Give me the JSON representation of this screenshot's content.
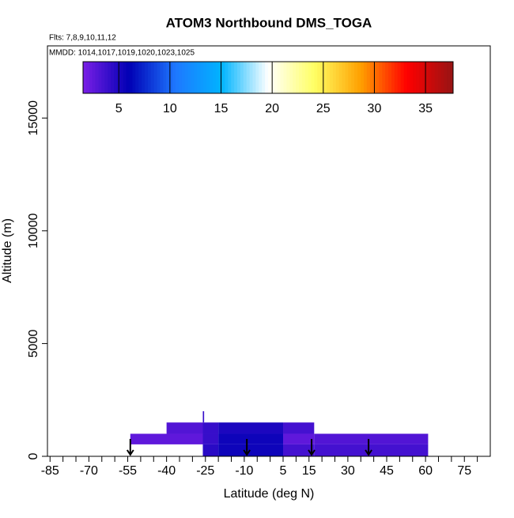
{
  "chart_data": {
    "type": "curtain",
    "title": "ATOM3 Northbound DMS_TOGA",
    "subtitle": "Flts: 7,8,9,10,11,12",
    "annotation": "MMDD: 1014,1017,1019,1020,1023,1025",
    "xlabel": "Latitude (deg N)",
    "ylabel": "Altitude (m)",
    "xlim": [
      -86,
      85
    ],
    "xticks": [
      -85,
      -70,
      -55,
      -40,
      -25,
      -10,
      5,
      15,
      30,
      45,
      60,
      75
    ],
    "xminorticks": [
      -80,
      -75,
      -65,
      -60,
      -50,
      -45,
      -35,
      -30,
      -20,
      -15,
      -5,
      0,
      10,
      20,
      25,
      35,
      40,
      50,
      55,
      65,
      70,
      80
    ],
    "ylim": [
      0,
      18200
    ],
    "yticks": [
      0,
      5000,
      10000,
      15000
    ],
    "clim": [
      1.5,
      37.7
    ],
    "cticks": [
      5,
      10,
      15,
      20,
      25,
      30,
      35
    ],
    "colormap": [
      "#7a1fe6",
      "#0000b4",
      "#1e78ff",
      "#00b4ff",
      "#ffffff",
      "#ffff64",
      "#ffa000",
      "#ff0000",
      "#961414"
    ],
    "cells": [
      {
        "lat": [
          -40,
          -26
        ],
        "alt": [
          1000,
          1500
        ],
        "value": 3
      },
      {
        "lat": [
          -26,
          -20
        ],
        "alt": [
          1000,
          1500
        ],
        "value": 4
      },
      {
        "lat": [
          -20,
          5
        ],
        "alt": [
          1000,
          1500
        ],
        "value": 5
      },
      {
        "lat": [
          5,
          17
        ],
        "alt": [
          1000,
          1500
        ],
        "value": 3.5
      },
      {
        "lat": [
          -54,
          -26
        ],
        "alt": [
          530,
          1000
        ],
        "value": 2.5
      },
      {
        "lat": [
          -26,
          -20
        ],
        "alt": [
          530,
          1000
        ],
        "value": 4
      },
      {
        "lat": [
          -20,
          5
        ],
        "alt": [
          530,
          1000
        ],
        "value": 5.5
      },
      {
        "lat": [
          5,
          17
        ],
        "alt": [
          530,
          1000
        ],
        "value": 2.5
      },
      {
        "lat": [
          17,
          61
        ],
        "alt": [
          530,
          1000
        ],
        "value": 3
      },
      {
        "lat": [
          -26,
          -20
        ],
        "alt": [
          0,
          530
        ],
        "value": 4.5
      },
      {
        "lat": [
          -20,
          5
        ],
        "alt": [
          0,
          530
        ],
        "value": 5.5
      },
      {
        "lat": [
          5,
          17
        ],
        "alt": [
          0,
          530
        ],
        "value": 3.5
      },
      {
        "lat": [
          17,
          61
        ],
        "alt": [
          0,
          530
        ],
        "value": 3.5
      },
      {
        "lat": [
          -26,
          -25.5
        ],
        "alt": [
          1500,
          2000
        ],
        "value": 4
      }
    ],
    "profile_lats": [
      -54,
      -9,
      16,
      38
    ]
  }
}
